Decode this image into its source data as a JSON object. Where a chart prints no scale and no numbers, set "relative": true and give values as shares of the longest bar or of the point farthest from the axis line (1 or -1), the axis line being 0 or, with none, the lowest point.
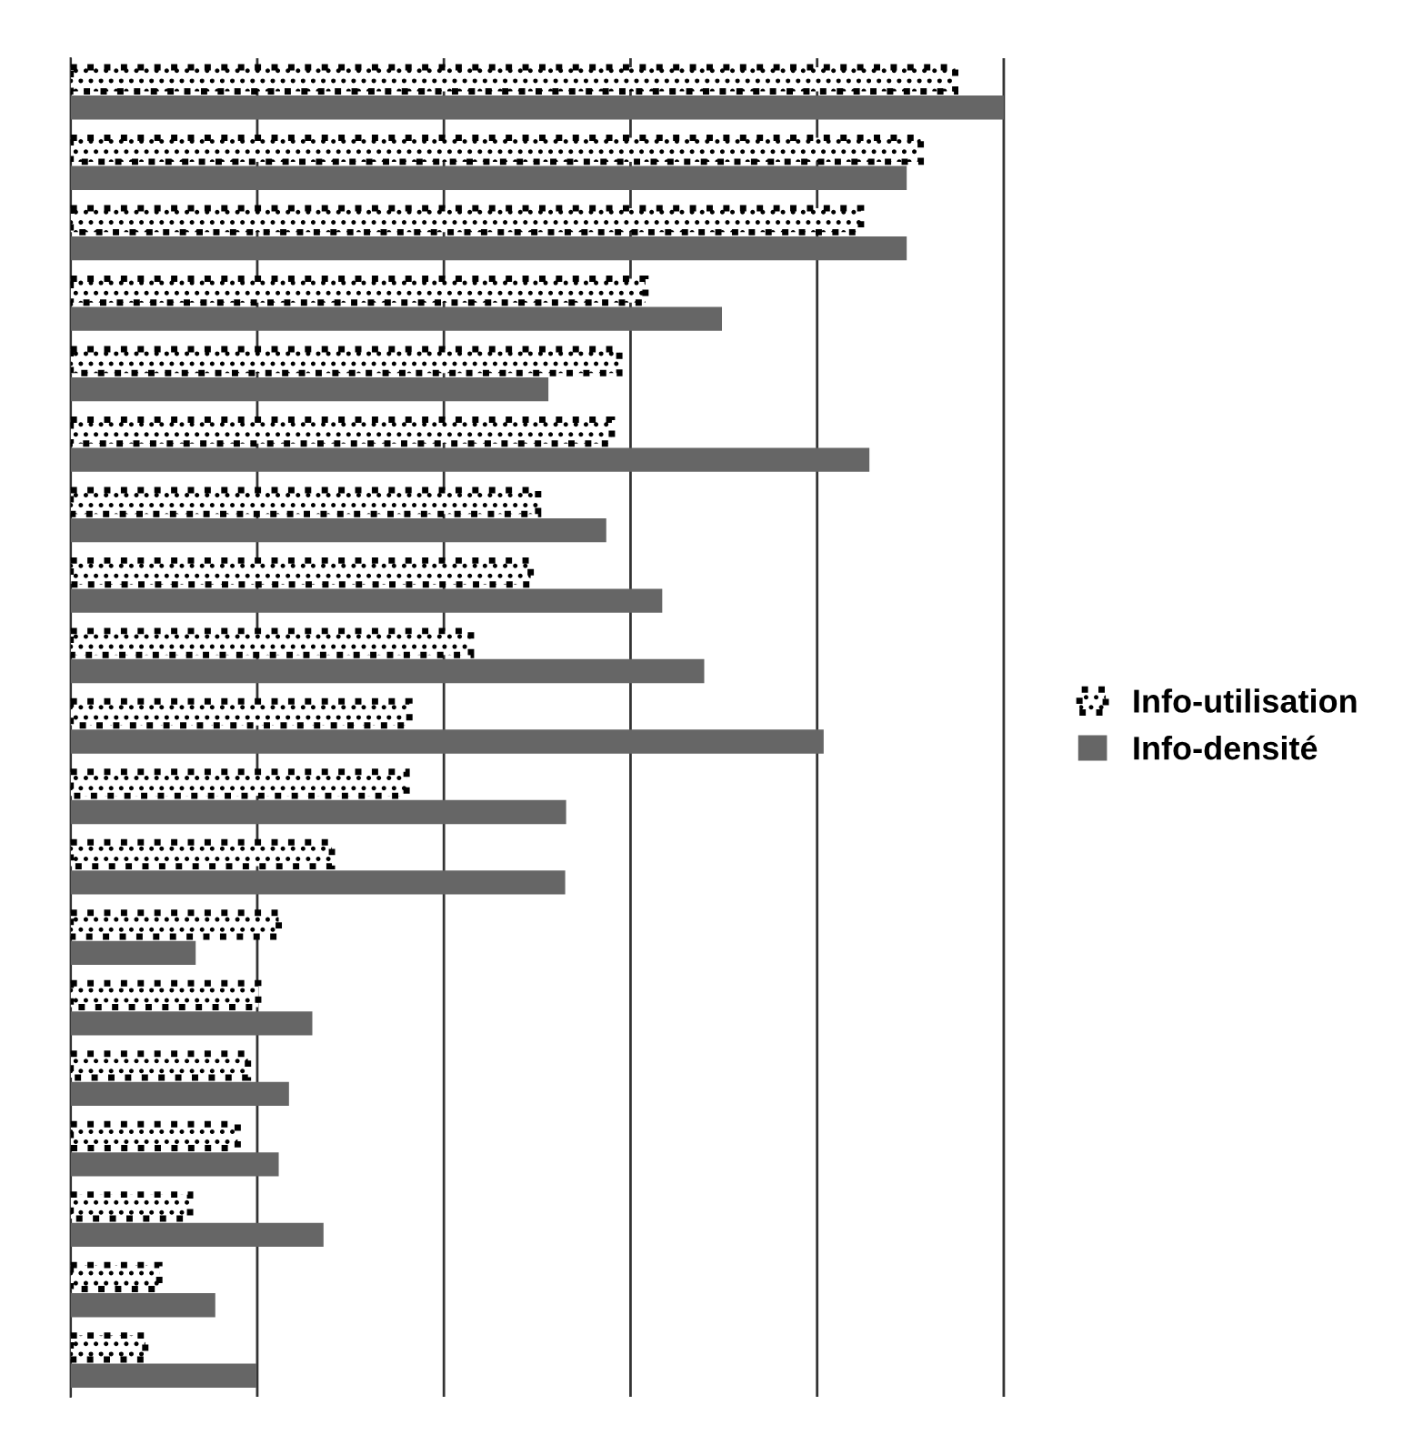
{
  "chart_data": {
    "type": "bar",
    "orientation": "horizontal",
    "relative": true,
    "grid": "x",
    "legend": "right",
    "categories": [
      null,
      null,
      null,
      null,
      null,
      null,
      null,
      null,
      null,
      null,
      null,
      null,
      null,
      null,
      null,
      null,
      null,
      null,
      null
    ],
    "series": [
      {
        "name": "Info-utilisation",
        "color": "#000000",
        "line_style": "dotted",
        "values": [
          0.948,
          0.911,
          0.847,
          0.616,
          0.588,
          0.58,
          0.501,
          0.493,
          0.429,
          0.363,
          0.36,
          0.28,
          0.223,
          0.201,
          0.19,
          0.179,
          0.128,
          0.095,
          0.08
        ]
      },
      {
        "name": "Info-densité",
        "color": "#666666",
        "values": [
          1,
          0.896,
          0.896,
          0.698,
          0.512,
          0.856,
          0.574,
          0.634,
          0.679,
          0.807,
          0.531,
          0.53,
          0.134,
          0.259,
          0.234,
          0.223,
          0.271,
          0.155,
          0.199
        ]
      }
    ]
  }
}
